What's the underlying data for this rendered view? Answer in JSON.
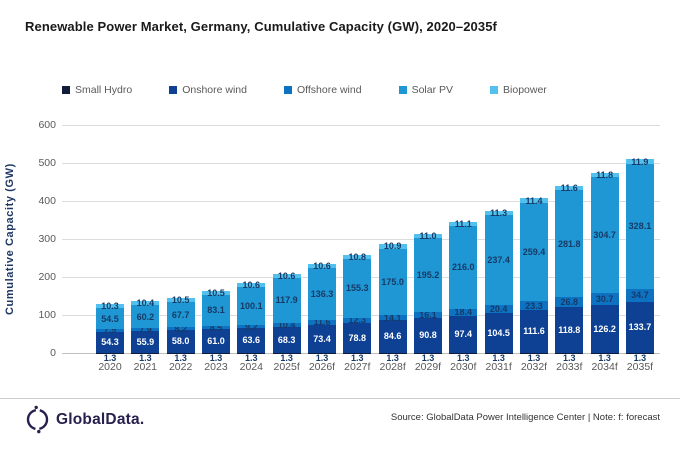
{
  "title": "Renewable Power Market, Germany, Cumulative Capacity (GW), 2020–2035f",
  "chart_data": {
    "type": "bar",
    "stacked": true,
    "title": "Renewable Power Market, Germany, Cumulative Capacity (GW), 2020–2035f",
    "xlabel": "",
    "ylabel": "Cumulative Capacity (GW)",
    "ylim": [
      0,
      600
    ],
    "yticks": [
      0,
      100,
      200,
      300,
      400,
      500,
      600
    ],
    "grid": true,
    "legend_position": "top",
    "categories": [
      "2020",
      "2021",
      "2022",
      "2023",
      "2024",
      "2025f",
      "2026f",
      "2027f",
      "2028f",
      "2029f",
      "2030f",
      "2031f",
      "2032f",
      "2033f",
      "2034f",
      "2035f"
    ],
    "series": [
      {
        "name": "Small Hydro",
        "color": "#101c3c",
        "label_color": "#173a66",
        "values": [
          1.3,
          1.3,
          1.3,
          1.3,
          1.3,
          1.3,
          1.3,
          1.3,
          1.3,
          1.3,
          1.3,
          1.3,
          1.3,
          1.3,
          1.3,
          1.3
        ]
      },
      {
        "name": "Onshore wind",
        "color": "#0e4194",
        "label_color": "#ffffff",
        "values": [
          54.3,
          55.9,
          58.0,
          61.0,
          63.6,
          68.3,
          73.4,
          78.8,
          84.6,
          90.8,
          97.4,
          104.5,
          111.6,
          118.8,
          126.2,
          133.7
        ]
      },
      {
        "name": "Offshore wind",
        "color": "#0d72c2",
        "label_color": "#173a66",
        "values": [
          7.9,
          7.9,
          8.2,
          8.5,
          9.2,
          10.4,
          11.6,
          12.3,
          14.1,
          16.1,
          18.4,
          20.4,
          23.3,
          26.8,
          30.7,
          34.7
        ]
      },
      {
        "name": "Solar PV",
        "color": "#1e97d4",
        "label_color": "#173a66",
        "values": [
          54.5,
          60.2,
          67.7,
          83.1,
          100.1,
          117.9,
          136.3,
          155.3,
          175.0,
          195.2,
          216.0,
          237.4,
          259.4,
          281.8,
          304.7,
          328.1
        ]
      },
      {
        "name": "Biopower",
        "color": "#53c1ee",
        "label_color": "#173a66",
        "values": [
          10.3,
          10.4,
          10.5,
          10.5,
          10.6,
          10.6,
          10.6,
          10.8,
          10.9,
          11.0,
          11.1,
          11.3,
          11.4,
          11.6,
          11.8,
          11.9
        ]
      }
    ]
  },
  "footer": {
    "logo_text": "GlobalData.",
    "source": "Source: GlobalData Power Intelligence Center | Note: f: forecast"
  }
}
